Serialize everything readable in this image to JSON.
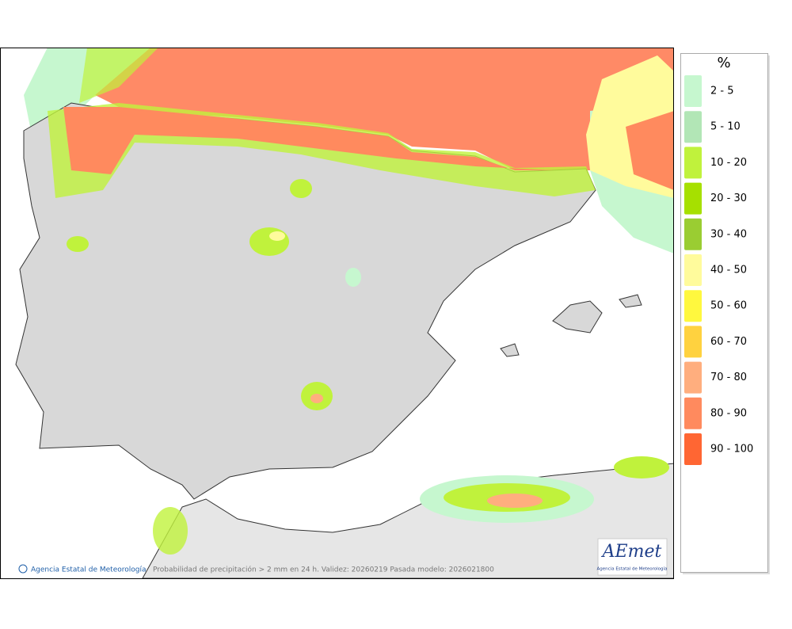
{
  "map": {
    "caption": "Probabilidad de precipitación > 2 mm en 24 h. Validez: 20260219 Pasada modelo: 2026021800",
    "credit": "Agencia Estatal de Meteorología",
    "logo": {
      "name": "AEmet",
      "subtitle": "Agencia Estatal de Meteorología"
    }
  },
  "legend": {
    "title": "%",
    "items": [
      {
        "label": "2 - 5",
        "color": "#c6f7cf"
      },
      {
        "label": "5 - 10",
        "color": "#b2e6b6"
      },
      {
        "label": "10 - 20",
        "color": "#c0f23c"
      },
      {
        "label": "20 - 30",
        "color": "#a6e000"
      },
      {
        "label": "30 - 40",
        "color": "#9acd32"
      },
      {
        "label": "40 - 50",
        "color": "#fffb9c"
      },
      {
        "label": "50 - 60",
        "color": "#fff83e"
      },
      {
        "label": "60 - 70",
        "color": "#ffd23f"
      },
      {
        "label": "70 - 80",
        "color": "#ffae7e"
      },
      {
        "label": "80 - 90",
        "color": "#ff8a5e"
      },
      {
        "label": "90 - 100",
        "color": "#ff6633"
      }
    ]
  }
}
